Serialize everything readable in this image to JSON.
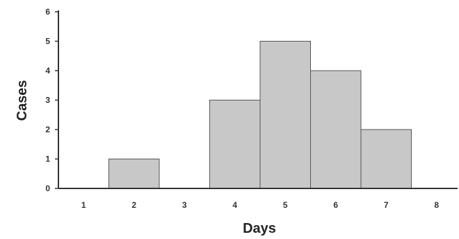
{
  "chart_data": {
    "type": "bar",
    "categories": [
      "1",
      "2",
      "3",
      "4",
      "5",
      "6",
      "7",
      "8"
    ],
    "values": [
      0,
      1,
      0,
      3,
      5,
      4,
      2,
      0
    ],
    "xlabel": "Days",
    "ylabel": "Cases",
    "ylim": [
      0,
      6
    ],
    "yticks": [
      "0",
      "1",
      "2",
      "3",
      "4",
      "5",
      "6"
    ],
    "grid": false,
    "bar_color": "#c8c8c8",
    "bar_edge_color": "#555555",
    "axis_color": "#333333"
  }
}
